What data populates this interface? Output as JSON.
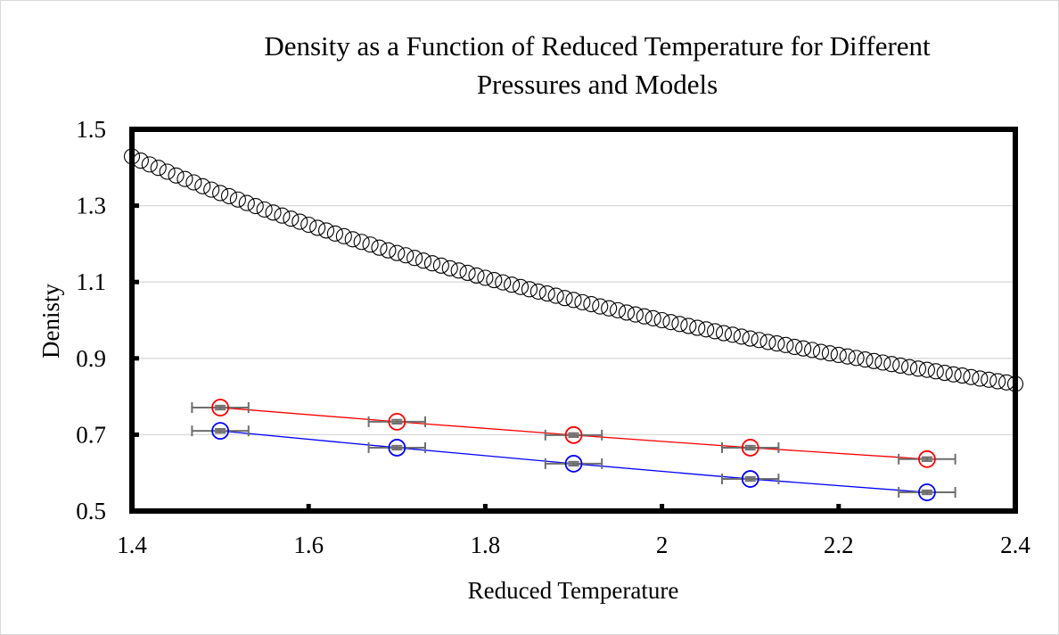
{
  "chart_data": {
    "type": "scatter",
    "title_lines": [
      "Density as a Function of Reduced Temperature for Different",
      "Pressures and Models"
    ],
    "title": "Density as a Function of Reduced Temperature for Different Pressures and Models",
    "xlabel": "Reduced Temperature",
    "ylabel": "Denisty",
    "xlim": [
      1.4,
      2.4
    ],
    "ylim": [
      0.5,
      1.5
    ],
    "xticks": [
      1.4,
      1.6,
      1.8,
      2,
      2.2,
      2.4
    ],
    "xtick_labels": [
      "1.4",
      "1.6",
      "1.8",
      "2",
      "2.2",
      "2.4"
    ],
    "yticks": [
      0.5,
      0.7,
      0.9,
      1.1,
      1.3,
      1.5
    ],
    "ytick_labels": [
      "0.5",
      "0.7",
      "0.9",
      "1.1",
      "1.3",
      "1.5"
    ],
    "grid": "horizontal",
    "legend": "none",
    "series": [
      {
        "name": "model-curve",
        "style": "open-circle markers",
        "color": "#000000",
        "x": [
          1.4,
          1.41,
          1.42,
          1.43,
          1.44,
          1.45,
          1.46,
          1.47,
          1.48,
          1.49,
          1.5,
          1.51,
          1.52,
          1.53,
          1.54,
          1.55,
          1.56,
          1.57,
          1.58,
          1.59,
          1.6,
          1.61,
          1.62,
          1.63,
          1.64,
          1.65,
          1.66,
          1.67,
          1.68,
          1.69,
          1.7,
          1.71,
          1.72,
          1.73,
          1.74,
          1.75,
          1.76,
          1.77,
          1.78,
          1.79,
          1.8,
          1.81,
          1.82,
          1.83,
          1.84,
          1.85,
          1.86,
          1.87,
          1.88,
          1.89,
          1.9,
          1.91,
          1.92,
          1.93,
          1.94,
          1.95,
          1.96,
          1.97,
          1.98,
          1.99,
          2.0,
          2.01,
          2.02,
          2.03,
          2.04,
          2.05,
          2.06,
          2.07,
          2.08,
          2.09,
          2.1,
          2.11,
          2.12,
          2.13,
          2.14,
          2.15,
          2.16,
          2.17,
          2.18,
          2.19,
          2.2,
          2.21,
          2.22,
          2.23,
          2.24,
          2.25,
          2.26,
          2.27,
          2.28,
          2.29,
          2.3,
          2.31,
          2.32,
          2.33,
          2.34,
          2.35,
          2.36,
          2.37,
          2.38,
          2.39,
          2.4
        ],
        "y": [
          1.429,
          1.418,
          1.408,
          1.399,
          1.389,
          1.379,
          1.37,
          1.361,
          1.351,
          1.342,
          1.333,
          1.325,
          1.316,
          1.307,
          1.299,
          1.29,
          1.282,
          1.274,
          1.266,
          1.258,
          1.25,
          1.242,
          1.235,
          1.227,
          1.22,
          1.212,
          1.205,
          1.198,
          1.19,
          1.183,
          1.176,
          1.17,
          1.163,
          1.156,
          1.149,
          1.143,
          1.136,
          1.13,
          1.124,
          1.117,
          1.111,
          1.105,
          1.099,
          1.093,
          1.087,
          1.081,
          1.075,
          1.07,
          1.064,
          1.058,
          1.053,
          1.047,
          1.042,
          1.036,
          1.031,
          1.026,
          1.02,
          1.015,
          1.01,
          1.005,
          1.0,
          0.995,
          0.99,
          0.985,
          0.98,
          0.976,
          0.971,
          0.966,
          0.962,
          0.957,
          0.952,
          0.948,
          0.943,
          0.939,
          0.935,
          0.93,
          0.926,
          0.922,
          0.917,
          0.913,
          0.909,
          0.905,
          0.901,
          0.897,
          0.893,
          0.889,
          0.885,
          0.881,
          0.877,
          0.873,
          0.87,
          0.866,
          0.862,
          0.858,
          0.855,
          0.851,
          0.847,
          0.844,
          0.84,
          0.837,
          0.833
        ]
      },
      {
        "name": "simulation-red",
        "style": "open-circle markers with line and error bars",
        "color": "#ff0000",
        "x": [
          1.5,
          1.7,
          1.9,
          2.1,
          2.3
        ],
        "y": [
          0.771,
          0.734,
          0.699,
          0.666,
          0.636
        ],
        "x_error": 0.032,
        "y_error": 0.005
      },
      {
        "name": "simulation-blue",
        "style": "open-circle markers with line and error bars",
        "color": "#0000ff",
        "x": [
          1.5,
          1.7,
          1.9,
          2.1,
          2.3
        ],
        "y": [
          0.71,
          0.666,
          0.624,
          0.584,
          0.549
        ],
        "x_error": 0.032,
        "y_error": 0.005
      }
    ],
    "colors": {
      "axis": "#000000",
      "grid": "#d9d9d9",
      "error_bar": "#6e6e6e"
    }
  }
}
